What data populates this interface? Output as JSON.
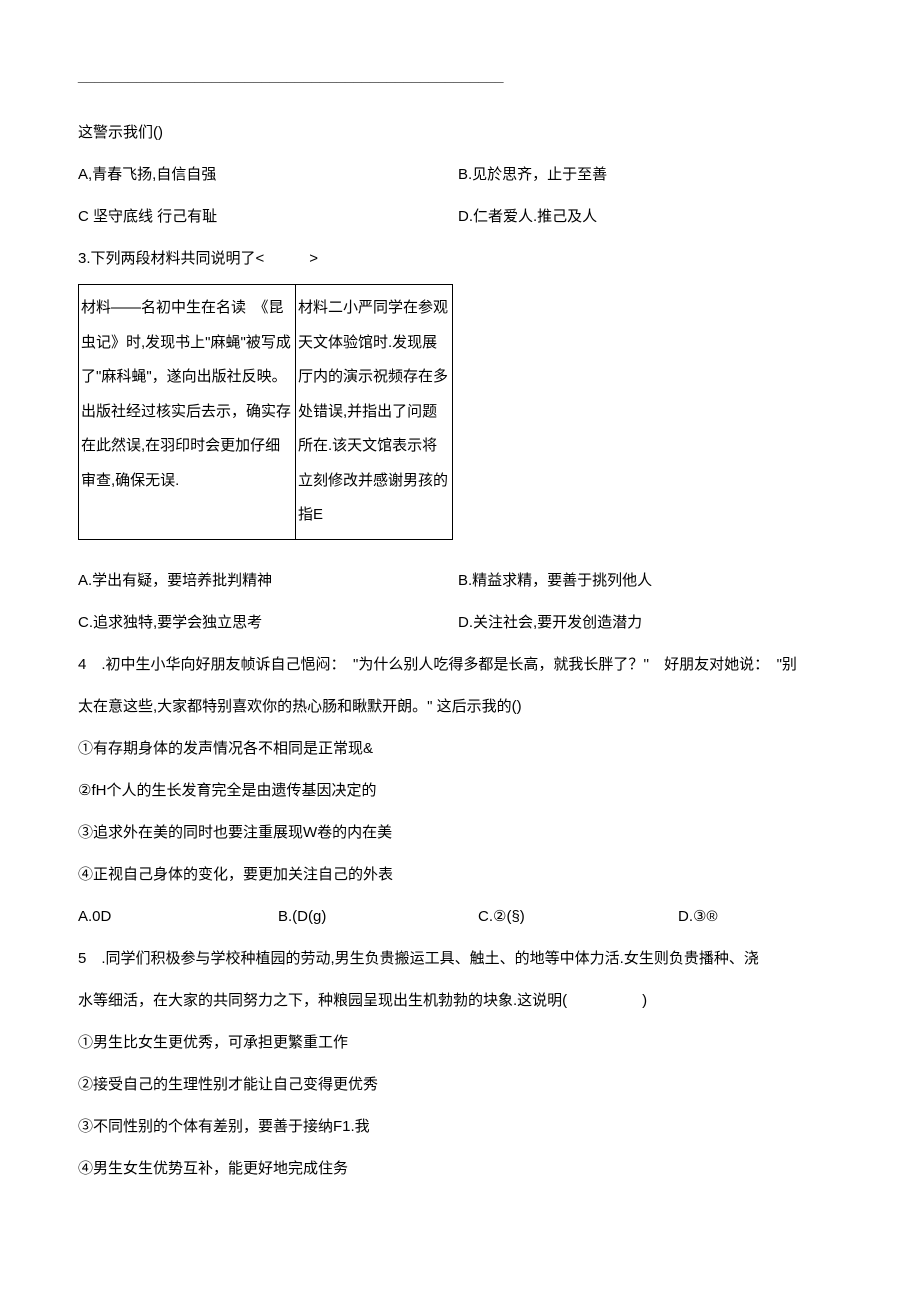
{
  "blank_line": "___________________________________________________",
  "q2": {
    "prompt": "这警示我们()",
    "A": "A,青春飞扬,自信自强",
    "B": "B.见於思齐，止于至善",
    "C": "C 坚守底线 行己有耻",
    "D": "D.仁者爱人.推己及人"
  },
  "q3": {
    "header": "3.下列两段材料共同说明了<　　　>",
    "material1": "材料——名初中生在名读　《昆虫记》时,发现书上\"麻蝇\"被写成了\"麻科蝇\"，遂向出版社反映。出版社经过核实后去示，确实存在此然误,在羽印时会更加仔细审查,确保无误.",
    "material2": "材料二小严同学在参观天文体验馆时.发现展厅内的演示祝频存在多处错误,并指出了问题所在.该天文馆表示将立刻修改并感谢男孩的指E",
    "A": "A.学出有疑，要培养批判精神",
    "B": "B.精益求精，要善于挑列他人",
    "C": "C.追求独特,要学会独立思考",
    "D": "D.关注社会,要开发创造潜力"
  },
  "q4": {
    "line1": "4　.初中生小华向好朋友帧诉自己悒闷：　\"为什么别人吃得多都是长高，就我长胖了？''　好朋友对她说：　\"别",
    "line2": "太在意这些,大家都特别喜欢你的热心肠和瞅默开朗。\" 这后示我的()",
    "s1": "①有存期身体的发声情况各不相同是正常现&",
    "s2": "②fH个人的生长发育完全是由遗传基因决定的",
    "s3": "③追求外在美的同时也要注重展现W卷的内在美",
    "s4": "④正视自己身体的变化，要更加关注自己的外表",
    "A": "A.0D",
    "B": "B.(D(g)",
    "C": "C.②(§)",
    "D": "D.③®"
  },
  "q5": {
    "line1": "5　.同学们积极参与学校种植园的劳动,男生负贵搬运工具、触土、的地等中体力活.女生则负贵播种、浇",
    "line2": "水等细活，在大家的共同努力之下，种粮园呈现出生机勃勃的块象.这说明(　　　　　)",
    "s1": "①男生比女生更优秀，可承担更繁重工作",
    "s2": "②接受自己的生理性别才能让自己变得更优秀",
    "s3": "③不同性别的个体有差别，要善于接纳F1.我",
    "s4": "④男生女生优势互补，能更好地完成住务"
  }
}
